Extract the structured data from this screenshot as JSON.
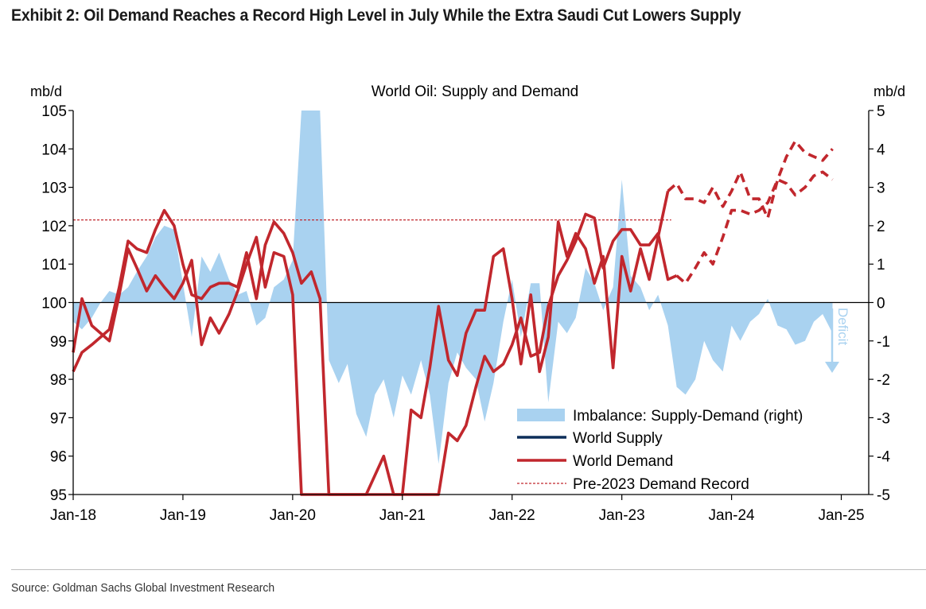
{
  "exhibit_title": "Exhibit 2: Oil Demand Reaches a Record High Level in July While the Extra Saudi Cut Lowers Supply",
  "source": "Source: Goldman Sachs Global Investment Research",
  "colors": {
    "supply": "#0d2f5a",
    "demand": "#c1272d",
    "imbalance": "#a9d2f0",
    "record": "#c1272d",
    "deficit": "#a9d2f0",
    "axis": "#000000"
  },
  "chart_data": {
    "type": "line",
    "title": "World Oil: Supply and Demand",
    "left_unit": "mb/d",
    "right_unit": "mb/d",
    "ylim": [
      95,
      105
    ],
    "y2lim": [
      -5,
      5
    ],
    "xlim": [
      2018.0,
      2025.25
    ],
    "y_ticks": [
      95,
      96,
      97,
      98,
      99,
      100,
      101,
      102,
      103,
      104,
      105
    ],
    "y2_ticks": [
      -5,
      -4,
      -3,
      -2,
      -1,
      0,
      1,
      2,
      3,
      4,
      5
    ],
    "x_tick_positions": [
      2018,
      2019,
      2020,
      2021,
      2022,
      2023,
      2024,
      2025
    ],
    "x_tick_labels": [
      "Jan-18",
      "Jan-19",
      "Jan-20",
      "Jan-21",
      "Jan-22",
      "Jan-23",
      "Jan-24",
      "Jan-25"
    ],
    "deficit_label": "Deficit",
    "record_level": 102.15,
    "legend": [
      "Imbalance: Supply-Demand (right)",
      "World Supply",
      "World Demand",
      "Pre-2023 Demand Record"
    ],
    "series": [
      {
        "name": "World Supply",
        "style": "solid",
        "points": [
          [
            2018.0,
            98.2
          ],
          [
            2018.08,
            98.7
          ],
          [
            2018.17,
            98.9
          ],
          [
            2018.25,
            99.1
          ],
          [
            2018.33,
            99.3
          ],
          [
            2018.42,
            100.4
          ],
          [
            2018.5,
            101.6
          ],
          [
            2018.58,
            101.4
          ],
          [
            2018.67,
            101.3
          ],
          [
            2018.75,
            101.9
          ],
          [
            2018.83,
            102.4
          ],
          [
            2018.92,
            102.0
          ],
          [
            2019.0,
            101.0
          ],
          [
            2019.08,
            100.2
          ],
          [
            2019.17,
            100.1
          ],
          [
            2019.25,
            100.4
          ],
          [
            2019.33,
            100.5
          ],
          [
            2019.42,
            100.5
          ],
          [
            2019.5,
            100.4
          ],
          [
            2019.58,
            101.3
          ],
          [
            2019.67,
            100.1
          ],
          [
            2019.75,
            101.5
          ],
          [
            2019.83,
            102.1
          ],
          [
            2019.92,
            101.8
          ],
          [
            2020.0,
            101.3
          ],
          [
            2020.08,
            100.5
          ],
          [
            2020.17,
            100.8
          ],
          [
            2020.25,
            100.1
          ],
          [
            2020.33,
            95.0
          ],
          [
            2021.33,
            95.0
          ],
          [
            2021.42,
            96.6
          ],
          [
            2021.5,
            96.4
          ],
          [
            2021.58,
            96.8
          ],
          [
            2021.67,
            97.8
          ],
          [
            2021.75,
            98.6
          ],
          [
            2021.83,
            98.2
          ],
          [
            2021.92,
            98.4
          ],
          [
            2022.0,
            98.9
          ],
          [
            2022.08,
            99.6
          ],
          [
            2022.17,
            98.6
          ],
          [
            2022.25,
            98.7
          ],
          [
            2022.33,
            99.9
          ],
          [
            2022.42,
            100.7
          ],
          [
            2022.5,
            101.1
          ],
          [
            2022.58,
            101.6
          ],
          [
            2022.67,
            102.3
          ],
          [
            2022.75,
            102.2
          ],
          [
            2022.83,
            100.9
          ],
          [
            2022.92,
            101.6
          ],
          [
            2023.0,
            101.9
          ],
          [
            2023.08,
            101.9
          ],
          [
            2023.17,
            101.5
          ],
          [
            2023.25,
            101.5
          ],
          [
            2023.33,
            101.8
          ],
          [
            2023.42,
            100.6
          ],
          [
            2023.5,
            100.7
          ]
        ]
      },
      {
        "name": "World Supply (forecast)",
        "style": "dashed",
        "points": [
          [
            2023.5,
            100.7
          ],
          [
            2023.58,
            100.5
          ],
          [
            2023.67,
            100.9
          ],
          [
            2023.75,
            101.3
          ],
          [
            2023.83,
            101.0
          ],
          [
            2023.92,
            101.7
          ],
          [
            2024.0,
            102.4
          ],
          [
            2024.08,
            102.4
          ],
          [
            2024.17,
            102.3
          ],
          [
            2024.25,
            102.4
          ],
          [
            2024.33,
            102.6
          ],
          [
            2024.42,
            103.2
          ],
          [
            2024.5,
            103.1
          ],
          [
            2024.58,
            102.8
          ],
          [
            2024.67,
            103.0
          ],
          [
            2024.75,
            103.3
          ],
          [
            2024.83,
            103.4
          ],
          [
            2024.92,
            103.2
          ]
        ]
      },
      {
        "name": "World Demand",
        "style": "solid",
        "points": [
          [
            2018.0,
            98.7
          ],
          [
            2018.08,
            100.1
          ],
          [
            2018.17,
            99.4
          ],
          [
            2018.25,
            99.2
          ],
          [
            2018.33,
            99.0
          ],
          [
            2018.42,
            100.2
          ],
          [
            2018.5,
            101.4
          ],
          [
            2018.58,
            100.9
          ],
          [
            2018.67,
            100.3
          ],
          [
            2018.75,
            100.7
          ],
          [
            2018.83,
            100.4
          ],
          [
            2018.92,
            100.1
          ],
          [
            2019.0,
            100.5
          ],
          [
            2019.08,
            101.1
          ],
          [
            2019.17,
            98.9
          ],
          [
            2019.25,
            99.6
          ],
          [
            2019.33,
            99.2
          ],
          [
            2019.42,
            99.7
          ],
          [
            2019.5,
            100.3
          ],
          [
            2019.58,
            101.0
          ],
          [
            2019.67,
            101.7
          ],
          [
            2019.75,
            100.4
          ],
          [
            2019.83,
            101.3
          ],
          [
            2019.92,
            101.2
          ],
          [
            2020.0,
            100.2
          ],
          [
            2020.08,
            95.0
          ],
          [
            2020.67,
            95.0
          ],
          [
            2020.75,
            95.5
          ],
          [
            2020.83,
            96.0
          ],
          [
            2020.92,
            95.0
          ],
          [
            2021.0,
            95.0
          ],
          [
            2021.08,
            97.2
          ],
          [
            2021.17,
            97.0
          ],
          [
            2021.25,
            98.3
          ],
          [
            2021.33,
            99.9
          ],
          [
            2021.42,
            98.5
          ],
          [
            2021.5,
            98.1
          ],
          [
            2021.58,
            99.2
          ],
          [
            2021.67,
            99.8
          ],
          [
            2021.75,
            99.8
          ],
          [
            2021.83,
            101.2
          ],
          [
            2021.92,
            101.4
          ],
          [
            2022.0,
            100.1
          ],
          [
            2022.08,
            98.4
          ],
          [
            2022.17,
            100.2
          ],
          [
            2022.25,
            98.2
          ],
          [
            2022.33,
            99.1
          ],
          [
            2022.42,
            102.1
          ],
          [
            2022.5,
            101.2
          ],
          [
            2022.58,
            101.8
          ],
          [
            2022.67,
            101.4
          ],
          [
            2022.75,
            100.5
          ],
          [
            2022.83,
            101.2
          ],
          [
            2022.92,
            98.3
          ],
          [
            2023.0,
            101.2
          ],
          [
            2023.08,
            100.3
          ],
          [
            2023.17,
            101.4
          ],
          [
            2023.25,
            100.6
          ],
          [
            2023.33,
            101.7
          ],
          [
            2023.42,
            102.9
          ]
        ]
      },
      {
        "name": "World Demand (forecast)",
        "style": "dashed",
        "points": [
          [
            2023.42,
            102.9
          ],
          [
            2023.5,
            103.1
          ],
          [
            2023.58,
            102.7
          ],
          [
            2023.67,
            102.7
          ],
          [
            2023.75,
            102.6
          ],
          [
            2023.83,
            103.0
          ],
          [
            2023.92,
            102.5
          ],
          [
            2024.0,
            102.9
          ],
          [
            2024.08,
            103.4
          ],
          [
            2024.17,
            102.7
          ],
          [
            2024.25,
            102.7
          ],
          [
            2024.33,
            102.2
          ],
          [
            2024.42,
            103.2
          ],
          [
            2024.5,
            103.8
          ],
          [
            2024.58,
            104.2
          ],
          [
            2024.67,
            103.9
          ],
          [
            2024.75,
            103.8
          ],
          [
            2024.83,
            103.7
          ],
          [
            2024.92,
            104.0
          ]
        ]
      },
      {
        "name": "Imbalance: Supply-Demand (right)",
        "style": "area",
        "points": [
          [
            2018.0,
            -0.5
          ],
          [
            2018.08,
            -0.7
          ],
          [
            2018.17,
            -0.4
          ],
          [
            2018.25,
            0.0
          ],
          [
            2018.33,
            0.3
          ],
          [
            2018.42,
            0.2
          ],
          [
            2018.5,
            0.4
          ],
          [
            2018.58,
            0.8
          ],
          [
            2018.67,
            1.2
          ],
          [
            2018.75,
            1.7
          ],
          [
            2018.83,
            2.0
          ],
          [
            2018.92,
            1.9
          ],
          [
            2019.0,
            0.5
          ],
          [
            2019.08,
            -0.9
          ],
          [
            2019.17,
            1.2
          ],
          [
            2019.25,
            0.8
          ],
          [
            2019.33,
            1.3
          ],
          [
            2019.42,
            0.6
          ],
          [
            2019.5,
            0.2
          ],
          [
            2019.58,
            0.3
          ],
          [
            2019.67,
            -0.6
          ],
          [
            2019.75,
            -0.4
          ],
          [
            2019.83,
            0.4
          ],
          [
            2019.92,
            0.6
          ],
          [
            2020.0,
            1.1
          ],
          [
            2020.08,
            5.0
          ],
          [
            2020.25,
            5.0
          ],
          [
            2020.33,
            -1.5
          ],
          [
            2020.42,
            -2.1
          ],
          [
            2020.5,
            -1.6
          ],
          [
            2020.58,
            -2.9
          ],
          [
            2020.67,
            -3.5
          ],
          [
            2020.75,
            -2.4
          ],
          [
            2020.83,
            -2.0
          ],
          [
            2020.92,
            -3.0
          ],
          [
            2021.0,
            -1.9
          ],
          [
            2021.08,
            -2.4
          ],
          [
            2021.17,
            -1.5
          ],
          [
            2021.25,
            -2.4
          ],
          [
            2021.33,
            -4.2
          ],
          [
            2021.42,
            -2.1
          ],
          [
            2021.5,
            -1.3
          ],
          [
            2021.58,
            -1.7
          ],
          [
            2021.67,
            -2.0
          ],
          [
            2021.75,
            -3.1
          ],
          [
            2021.83,
            -2.1
          ],
          [
            2021.92,
            -0.5
          ],
          [
            2022.0,
            0.6
          ],
          [
            2022.08,
            -0.9
          ],
          [
            2022.17,
            0.5
          ],
          [
            2022.25,
            0.5
          ],
          [
            2022.33,
            -2.6
          ],
          [
            2022.42,
            -0.5
          ],
          [
            2022.5,
            -0.8
          ],
          [
            2022.58,
            -0.4
          ],
          [
            2022.67,
            0.9
          ],
          [
            2022.75,
            0.5
          ],
          [
            2022.83,
            -0.2
          ],
          [
            2022.92,
            0.4
          ],
          [
            2023.0,
            3.2
          ],
          [
            2023.08,
            0.7
          ],
          [
            2023.17,
            0.4
          ],
          [
            2023.25,
            -0.2
          ],
          [
            2023.33,
            0.2
          ],
          [
            2023.42,
            -0.6
          ],
          [
            2023.5,
            -2.2
          ],
          [
            2023.58,
            -2.4
          ],
          [
            2023.67,
            -2.0
          ],
          [
            2023.75,
            -1.0
          ],
          [
            2023.83,
            -1.5
          ],
          [
            2023.92,
            -1.8
          ],
          [
            2024.0,
            -0.6
          ],
          [
            2024.08,
            -1.0
          ],
          [
            2024.17,
            -0.5
          ],
          [
            2024.25,
            -0.3
          ],
          [
            2024.33,
            0.1
          ],
          [
            2024.42,
            -0.6
          ],
          [
            2024.5,
            -0.7
          ],
          [
            2024.58,
            -1.1
          ],
          [
            2024.67,
            -1.0
          ],
          [
            2024.75,
            -0.5
          ],
          [
            2024.83,
            -0.3
          ],
          [
            2024.92,
            -0.8
          ]
        ]
      }
    ]
  }
}
